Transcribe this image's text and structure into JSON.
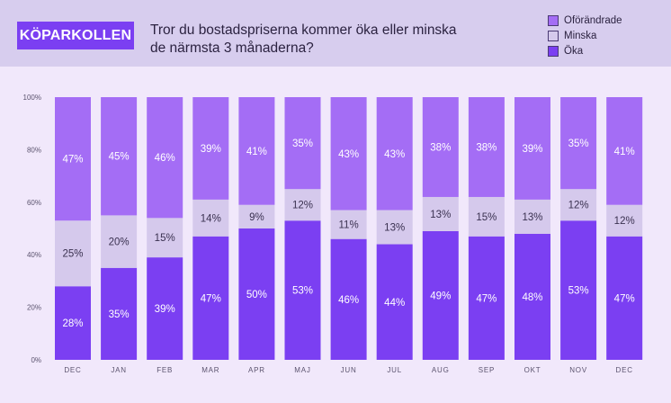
{
  "header": {
    "brand": "KÖPARKOLLEN",
    "title_line1": "Tror du bostadspriserna kommer öka eller minska",
    "title_line2": "de närmsta 3 månaderna?"
  },
  "colors": {
    "oka": "#7b3ff2",
    "minska": "#d5c9ec",
    "oforandrade": "#a46df5",
    "background": "#f1e8fb",
    "header_bg": "#d7cdee"
  },
  "chart_data": {
    "type": "bar",
    "stacked": true,
    "categories": [
      "DEC",
      "JAN",
      "FEB",
      "MAR",
      "APR",
      "MAJ",
      "JUN",
      "JUL",
      "AUG",
      "SEP",
      "OKT",
      "NOV",
      "DEC"
    ],
    "series": [
      {
        "name": "Öka",
        "color_key": "oka",
        "values": [
          28,
          35,
          39,
          47,
          50,
          53,
          46,
          44,
          49,
          47,
          48,
          53,
          47
        ],
        "label_color": "#ffffff"
      },
      {
        "name": "Minska",
        "color_key": "minska",
        "values": [
          25,
          20,
          15,
          14,
          9,
          12,
          11,
          13,
          13,
          15,
          13,
          12,
          12
        ],
        "label_color": "#3a3150"
      },
      {
        "name": "Oförändrade",
        "color_key": "oforandrade",
        "values": [
          47,
          45,
          46,
          39,
          41,
          35,
          43,
          43,
          38,
          38,
          39,
          35,
          41
        ],
        "label_color": "#ffffff"
      }
    ],
    "legend": [
      "Oförändrade",
      "Minska",
      "Öka"
    ],
    "legend_position": "top-right",
    "y_ticks": [
      "0%",
      "20%",
      "40%",
      "60%",
      "80%",
      "100%"
    ],
    "ylim": [
      0,
      100
    ],
    "title": "Tror du bostadspriserna kommer öka eller minska de närmsta 3 månaderna?"
  }
}
